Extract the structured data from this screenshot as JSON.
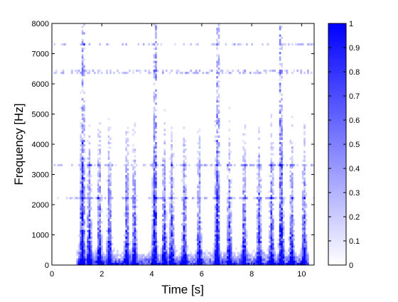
{
  "chart_data": {
    "type": "heatmap",
    "xlabel": "Time [s]",
    "ylabel": "Frequency [Hz]",
    "xlim": [
      0,
      10.5
    ],
    "ylim": [
      0,
      8000
    ],
    "x_ticks": [
      "0",
      "2",
      "4",
      "6",
      "8",
      "10"
    ],
    "x_tick_values": [
      0,
      2,
      4,
      6,
      8,
      10
    ],
    "y_ticks": [
      "0",
      "1000",
      "2000",
      "3000",
      "4000",
      "5000",
      "6000",
      "7000",
      "8000"
    ],
    "y_tick_values": [
      0,
      1000,
      2000,
      3000,
      4000,
      5000,
      6000,
      7000,
      8000
    ],
    "colorbar": {
      "range": [
        0,
        1
      ],
      "ticks": [
        "0",
        "0.1",
        "0.2",
        "0.3",
        "0.4",
        "0.5",
        "0.6",
        "0.7",
        "0.8",
        "0.9",
        "1"
      ],
      "tick_values": [
        0,
        0.1,
        0.2,
        0.3,
        0.4,
        0.5,
        0.6,
        0.7,
        0.8,
        0.9,
        1
      ],
      "color_low": "#ffffff",
      "color_high": "#0000ff"
    },
    "grid": false,
    "energy_bursts_s": [
      1.2,
      1.5,
      1.9,
      2.3,
      3.0,
      3.3,
      4.1,
      4.5,
      4.8,
      5.3,
      5.9,
      6.6,
      7.1,
      7.7,
      8.3,
      8.8,
      9.2,
      9.6,
      10.1
    ],
    "strong_onsets_s": [
      1.25,
      4.15,
      6.65,
      9.15
    ],
    "harmonic_bands_hz": [
      3300,
      2200,
      6400,
      7300
    ]
  }
}
